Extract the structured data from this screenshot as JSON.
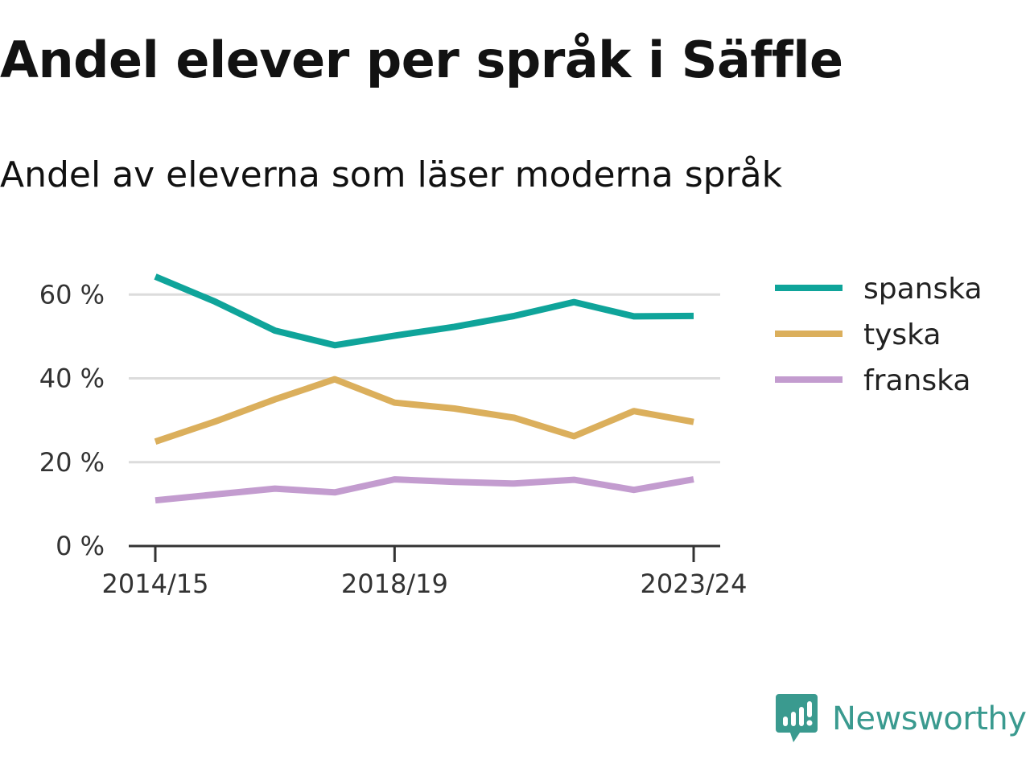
{
  "title": "Andel elever per språk i Säffle",
  "subtitle": "Andel av eleverna som läser moderna språk",
  "brand": {
    "name": "Newsworthy",
    "logo_icon": "newsworthy-chart-bubble-icon",
    "color": "#3a9a8f"
  },
  "chart_data": {
    "type": "line",
    "x": [
      "2014/15",
      "2015/16",
      "2016/17",
      "2017/18",
      "2018/19",
      "2019/20",
      "2020/21",
      "2021/22",
      "2022/23",
      "2023/24"
    ],
    "x_tick_labels": [
      "2014/15",
      "2018/19",
      "2023/24"
    ],
    "y_ticks": [
      {
        "value": 0,
        "label": "0 %"
      },
      {
        "value": 20,
        "label": "20 %"
      },
      {
        "value": 40,
        "label": "40 %"
      },
      {
        "value": 60,
        "label": "60 %"
      }
    ],
    "ylim": [
      0,
      66
    ],
    "grid": true,
    "legend_position": "right",
    "series": [
      {
        "name": "spanska",
        "color": "#0fa49a",
        "values": [
          64.3,
          58.3,
          51.4,
          47.9,
          50.2,
          52.3,
          54.9,
          58.2,
          54.8,
          54.9
        ]
      },
      {
        "name": "tyska",
        "color": "#dbaf5c",
        "values": [
          24.9,
          29.7,
          35.0,
          39.8,
          34.2,
          32.8,
          30.6,
          26.2,
          32.2,
          29.6
        ]
      },
      {
        "name": "franska",
        "color": "#c39ccf",
        "values": [
          10.9,
          12.3,
          13.7,
          12.8,
          15.9,
          15.3,
          14.9,
          15.8,
          13.4,
          15.9
        ]
      }
    ]
  }
}
